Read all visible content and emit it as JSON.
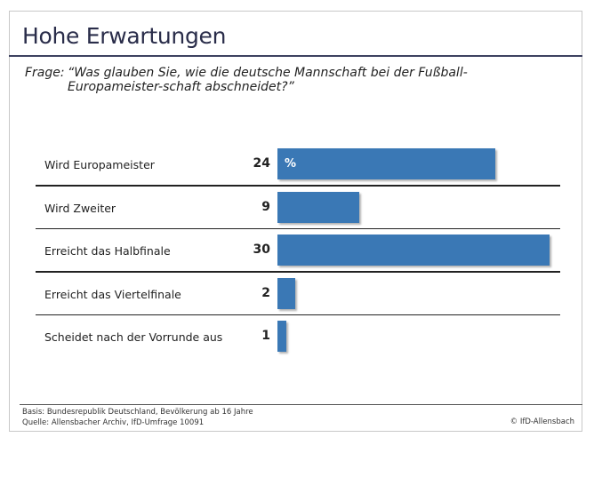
{
  "title": "Hohe Erwartungen",
  "question_lead": "Frage:",
  "question": "“Was glauben Sie, wie die deutsche Mannschaft bei der Fußball-Europameister-schaft abschneidet?”",
  "footer": {
    "basis": "Basis: Bundesrepublik Deutschland, Bevölkerung ab 16 Jahre",
    "source": "Quelle: Allensbacher Archiv, IfD-Umfrage 10091",
    "copyright": "© IfD-Allensbach"
  },
  "chart_data": {
    "type": "bar",
    "orientation": "horizontal",
    "unit": "%",
    "categories": [
      "Wird Europameister",
      "Wird Zweiter",
      "Erreicht das Halbfinale",
      "Erreicht das Viertelfinale",
      "Scheidet nach der Vorrunde aus"
    ],
    "values": [
      24,
      9,
      30,
      2,
      1
    ],
    "bar_color": "#3a78b5"
  }
}
